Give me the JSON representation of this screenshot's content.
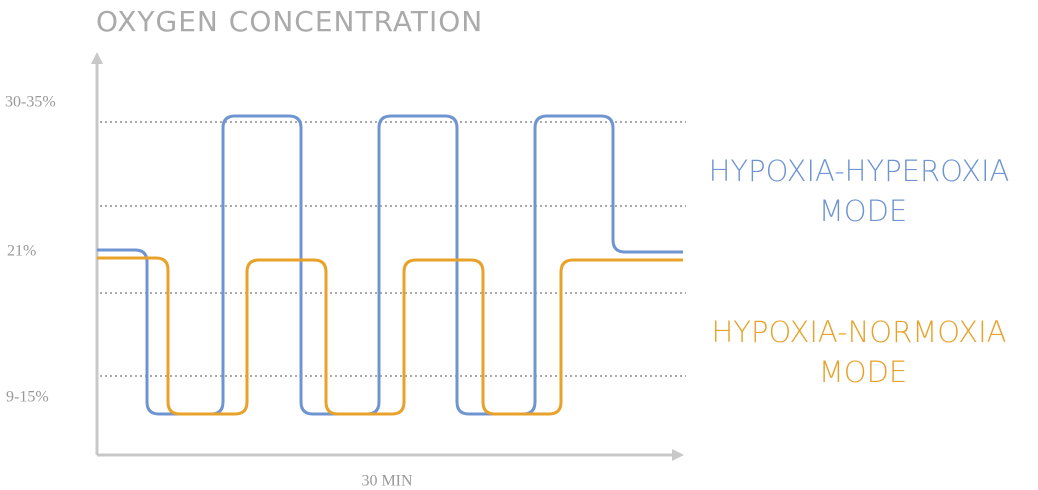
{
  "title": "OXYGEN CONCENTRATION",
  "y_labels": [
    "30-35%",
    "21%",
    "9-15%"
  ],
  "x_label": "30 MIN",
  "legend": [
    {
      "lines": [
        "HYPOXIA-HYPEROXIA",
        "MODE"
      ]
    },
    {
      "lines": [
        "HYPOXIA-NORMOXIA",
        "MODE"
      ]
    }
  ]
}
